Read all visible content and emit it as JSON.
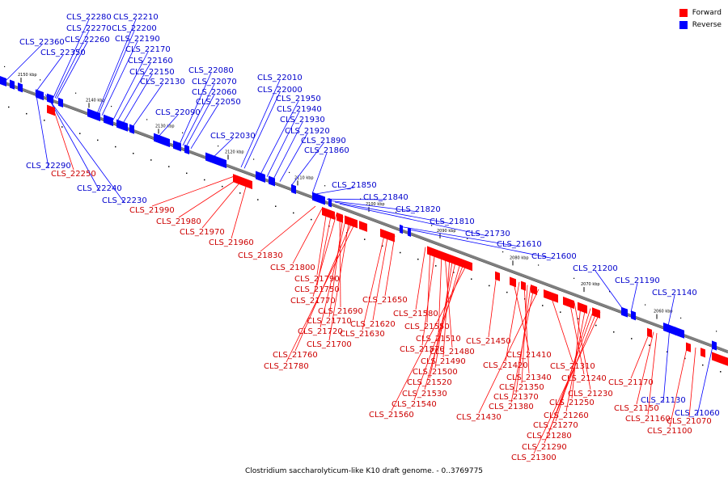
{
  "legend": {
    "forward_label": "Forward",
    "reverse_label": "Reverse",
    "forward_color": "#ff0000",
    "reverse_color": "#0000ff"
  },
  "caption": "Clostridium saccharolyticum-like K10 draft genome. - 0..3769775",
  "ticks": [
    "2150 kbp",
    "2140 kbp",
    "2130 kbp",
    "2120 kbp",
    "2110 kbp",
    "2100 kbp",
    "2090 kbp",
    "2080 kbp",
    "2070 kbp",
    "2060 kbp"
  ],
  "reverse_labels": [
    "CLS_22280",
    "CLS_22210",
    "CLS_22270",
    "CLS_22200",
    "CLS_22360",
    "CLS_22260",
    "CLS_22190",
    "CLS_22350",
    "CLS_22170",
    "CLS_22160",
    "CLS_22150",
    "CLS_22130",
    "CLS_22080",
    "CLS_22070",
    "CLS_22060",
    "CLS_22050",
    "CLS_22090",
    "CLS_22010",
    "CLS_22000",
    "CLS_21950",
    "CLS_21940",
    "CLS_21930",
    "CLS_21920",
    "CLS_22030",
    "CLS_21890",
    "CLS_21860",
    "CLS_22290",
    "CLS_22240",
    "CLS_22230",
    "CLS_21850",
    "CLS_21840",
    "CLS_21820",
    "CLS_21810",
    "CLS_21730",
    "CLS_21610",
    "CLS_21600",
    "CLS_21200",
    "CLS_21190",
    "CLS_21140",
    "CLS_21130",
    "CLS_21060"
  ],
  "forward_labels": [
    "CLS_22250",
    "CLS_21990",
    "CLS_21980",
    "CLS_21970",
    "CLS_21960",
    "CLS_21830",
    "CLS_21800",
    "CLS_21790",
    "CLS_21750",
    "CLS_21770",
    "CLS_21650",
    "CLS_21690",
    "CLS_21710",
    "CLS_21580",
    "CLS_21720",
    "CLS_21620",
    "CLS_21630",
    "CLS_21550",
    "CLS_21700",
    "CLS_21510",
    "CLS_21450",
    "CLS_21760",
    "CLS_21570",
    "CLS_21480",
    "CLS_21410",
    "CLS_21780",
    "CLS_21490",
    "CLS_21420",
    "CLS_21310",
    "CLS_21500",
    "CLS_21340",
    "CLS_21240",
    "CLS_21520",
    "CLS_21350",
    "CLS_21230",
    "CLS_21530",
    "CLS_21370",
    "CLS_21250",
    "CLS_21540",
    "CLS_21380",
    "CLS_21260",
    "CLS_21560",
    "CLS_21430",
    "CLS_21270",
    "CLS_21280",
    "CLS_21290",
    "CLS_21300",
    "CLS_21170",
    "CLS_21150",
    "CLS_21160",
    "CLS_21070",
    "CLS_21100"
  ]
}
